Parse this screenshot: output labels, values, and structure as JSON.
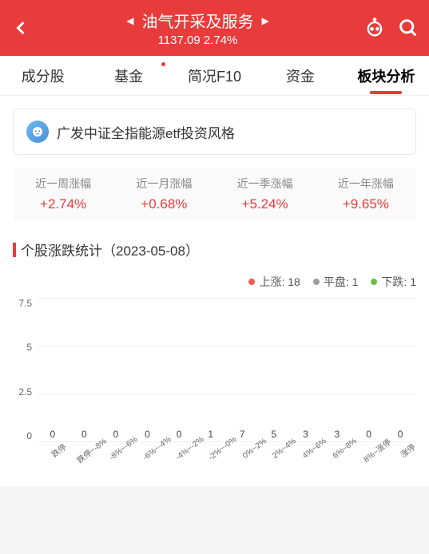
{
  "header": {
    "title": "油气开采及服务",
    "price": "1137.09",
    "change": "2.74%"
  },
  "tabs": [
    {
      "label": "成分股",
      "hasDot": false
    },
    {
      "label": "基金",
      "hasDot": true
    },
    {
      "label": "简况F10",
      "hasDot": false
    },
    {
      "label": "资金",
      "hasDot": false
    },
    {
      "label": "板块分析",
      "hasDot": false
    }
  ],
  "promo": {
    "text": "广发中证全指能源etf投资风格"
  },
  "periods": [
    {
      "label": "近一周涨幅",
      "value": "+2.74%"
    },
    {
      "label": "近一月涨幅",
      "value": "+0.68%"
    },
    {
      "label": "近一季涨幅",
      "value": "+5.24%"
    },
    {
      "label": "近一年涨幅",
      "value": "+9.65%"
    }
  ],
  "sectionTitle": "个股涨跌统计（2023-05-08）",
  "legend": {
    "up": {
      "label": "上涨",
      "value": "18",
      "color": "#ee5a51"
    },
    "flat": {
      "label": "平盘",
      "value": "1",
      "color": "#9e9e9e"
    },
    "down": {
      "label": "下跌",
      "value": "1",
      "color": "#6abf47"
    }
  },
  "chart": {
    "ymax": 7.5,
    "yticks": [
      "7.5",
      "5",
      "2.5",
      "0"
    ],
    "categories": [
      "跌停",
      "跌停~-8%",
      "-8%~-6%",
      "-6%~-4%",
      "-4%~-2%",
      "-2%~-0%",
      "0%~2%",
      "2%~4%",
      "4%~6%",
      "6%~8%",
      "8%~涨停",
      "涨停"
    ],
    "values": [
      0,
      0,
      0,
      0,
      0,
      1,
      7,
      5,
      3,
      3,
      0,
      0
    ],
    "types": [
      "down",
      "down",
      "down",
      "down",
      "down",
      "down",
      "up",
      "up",
      "up",
      "up",
      "up",
      "up"
    ],
    "colors": {
      "up": "#ee5a51",
      "down": "#6abf47"
    }
  }
}
